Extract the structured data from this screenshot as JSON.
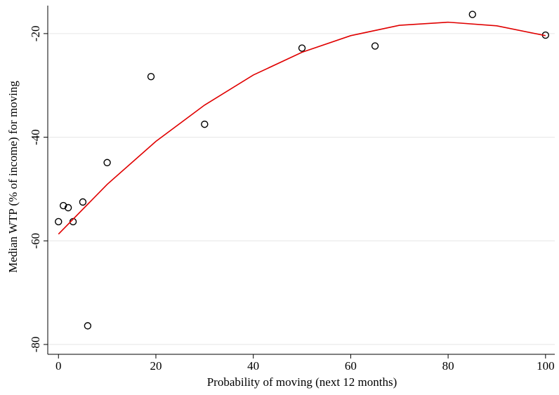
{
  "chart_data": {
    "type": "scatter",
    "x_label": "Probability of moving (next 12 months)",
    "y_label": "Median WTP (% of income) for moving",
    "xlim": [
      -2.2,
      101.9
    ],
    "ylim": [
      -81.9,
      -14.6
    ],
    "xticks": [
      0,
      20,
      40,
      60,
      80,
      100
    ],
    "yticks": [
      -80,
      -60,
      -40,
      -20
    ],
    "grid": true,
    "series": [
      {
        "type": "scatter",
        "color": "#000000",
        "x": [
          0,
          1,
          2,
          3,
          5,
          6,
          10,
          19,
          30,
          50,
          65,
          85,
          100
        ],
        "values": [
          -56.3,
          -53.2,
          -53.6,
          -56.3,
          -52.5,
          -76.4,
          -44.9,
          -28.3,
          -37.5,
          -22.8,
          -22.4,
          -16.3,
          -20.3
        ]
      },
      {
        "type": "line",
        "color": "#e00000",
        "x": [
          0,
          10,
          20,
          30,
          40,
          50,
          60,
          70,
          80,
          90,
          100
        ],
        "values": [
          -58.7,
          -49.1,
          -40.8,
          -33.8,
          -28.0,
          -23.6,
          -20.4,
          -18.4,
          -17.8,
          -18.5,
          -20.4
        ]
      }
    ]
  }
}
